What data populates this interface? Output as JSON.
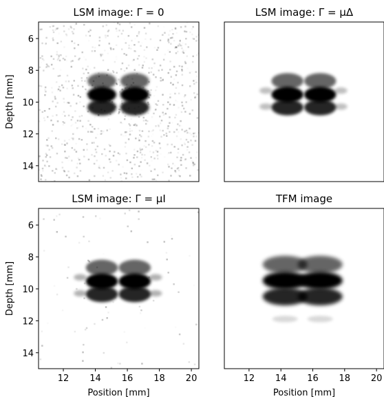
{
  "chart_data": [
    {
      "type": "image",
      "title": "LSM image: Γ = 0",
      "ylabel": "Depth [mm]",
      "xlim": [
        10.45,
        20.47
      ],
      "ylim": [
        4.96,
        15.0
      ],
      "yticks": [
        6,
        8,
        10,
        12,
        14
      ]
    },
    {
      "type": "image",
      "title": "LSM image: Γ = μΔ",
      "xlim": [
        10.45,
        20.47
      ],
      "ylim": [
        4.96,
        15.0
      ]
    },
    {
      "type": "image",
      "title": "LSM image: Γ = μI",
      "xlabel": "Position [mm]",
      "ylabel": "Depth [mm]",
      "xlim": [
        10.45,
        20.47
      ],
      "ylim": [
        4.96,
        15.0
      ],
      "xticks": [
        12,
        14,
        16,
        18,
        20
      ],
      "yticks": [
        6,
        8,
        10,
        12,
        14
      ]
    },
    {
      "type": "image",
      "title": "TFM image",
      "xlabel": "Position [mm]",
      "xlim": [
        10.45,
        20.47
      ],
      "ylim": [
        4.96,
        15.0
      ],
      "xticks": [
        12,
        14,
        16,
        18,
        20
      ]
    }
  ]
}
